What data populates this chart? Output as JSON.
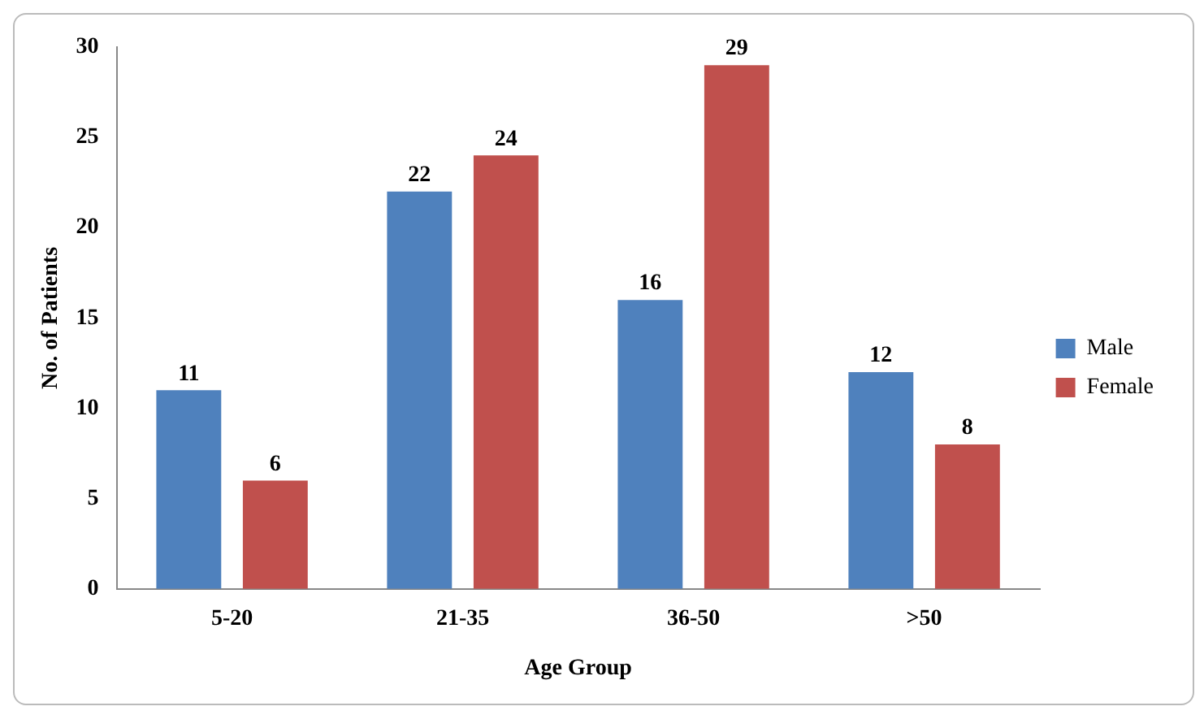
{
  "chart_data": {
    "type": "bar",
    "xlabel": "Age Group",
    "ylabel": "No. of Patients",
    "categories": [
      "5-20",
      "21-35",
      "36-50",
      ">50"
    ],
    "series": [
      {
        "name": "Male",
        "color": "#4f81bd",
        "values": [
          11,
          22,
          16,
          12
        ]
      },
      {
        "name": "Female",
        "color": "#c0504d",
        "values": [
          6,
          24,
          29,
          8
        ]
      }
    ],
    "ylim": [
      0,
      30
    ],
    "yticks": [
      0,
      5,
      10,
      15,
      20,
      25,
      30
    ],
    "grid": false,
    "legend": "right",
    "data_labels": true
  }
}
